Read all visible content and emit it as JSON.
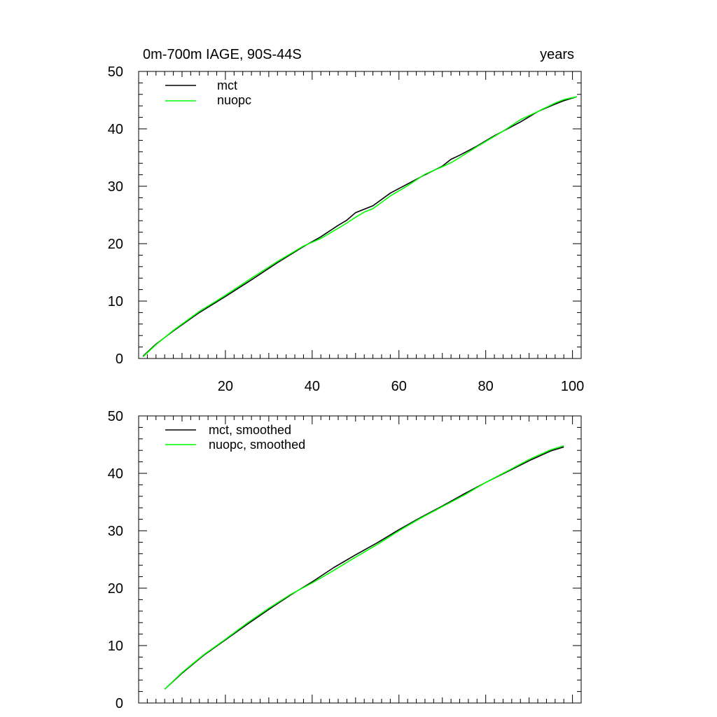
{
  "chart_data": [
    {
      "type": "line",
      "title": "0m-700m IAGE, 90S-44S",
      "units": "years",
      "xlim": [
        0,
        102
      ],
      "ylim": [
        0,
        50
      ],
      "xticks": [
        20,
        40,
        60,
        80,
        100
      ],
      "xtick_labels": [
        "20",
        "40",
        "60",
        "80",
        "100"
      ],
      "yticks": [
        0,
        10,
        20,
        30,
        40,
        50
      ],
      "ytick_labels": [
        "0",
        "10",
        "20",
        "30",
        "40",
        "50"
      ],
      "legend": "top-left",
      "series": [
        {
          "name": "mct",
          "color": "#000000",
          "x": [
            1,
            4,
            8,
            14,
            20,
            26,
            32,
            38,
            42,
            46,
            48,
            50,
            52,
            54,
            58,
            62,
            66,
            70,
            72,
            74,
            78,
            82,
            84,
            88,
            92,
            96,
            98,
            101
          ],
          "y": [
            0.4,
            2.5,
            4.8,
            8.0,
            10.8,
            13.7,
            16.7,
            19.5,
            21.2,
            23.2,
            24.1,
            25.4,
            26.0,
            26.6,
            28.8,
            30.4,
            32.0,
            33.5,
            34.7,
            35.4,
            37.0,
            38.8,
            39.6,
            41.2,
            43.0,
            44.3,
            44.9,
            45.6
          ]
        },
        {
          "name": "nuopc",
          "color": "#00ff00",
          "x": [
            1,
            4,
            8,
            14,
            20,
            26,
            32,
            38,
            42,
            46,
            48,
            50,
            52,
            54,
            58,
            62,
            66,
            70,
            72,
            74,
            78,
            82,
            84,
            88,
            92,
            96,
            98,
            101
          ],
          "y": [
            0.3,
            2.4,
            4.9,
            8.2,
            11.0,
            14.0,
            16.9,
            19.6,
            20.9,
            22.7,
            23.6,
            24.6,
            25.5,
            26.1,
            28.3,
            30.1,
            32.1,
            33.4,
            34.1,
            35.0,
            36.9,
            38.7,
            39.6,
            41.6,
            43.0,
            44.5,
            45.1,
            45.6
          ]
        }
      ]
    },
    {
      "type": "line",
      "xlim": [
        0,
        102
      ],
      "ylim": [
        0,
        50
      ],
      "xticks": [
        20,
        40,
        60,
        80,
        100
      ],
      "yticks": [
        0,
        10,
        20,
        30,
        40,
        50
      ],
      "ytick_labels": [
        "0",
        "10",
        "20",
        "30",
        "40",
        "50"
      ],
      "legend": "top-left",
      "series": [
        {
          "name": "mct, smoothed",
          "color": "#000000",
          "x": [
            6,
            10,
            15,
            20,
            25,
            30,
            35,
            40,
            45,
            50,
            55,
            60,
            65,
            70,
            75,
            80,
            85,
            90,
            95,
            98
          ],
          "y": [
            2.4,
            5.2,
            8.3,
            11.0,
            13.7,
            16.3,
            18.8,
            21.1,
            23.6,
            25.8,
            27.9,
            30.2,
            32.3,
            34.3,
            36.4,
            38.4,
            40.3,
            42.2,
            43.9,
            44.6
          ]
        },
        {
          "name": "nuopc, smoothed",
          "color": "#00ff00",
          "x": [
            6,
            10,
            15,
            20,
            25,
            30,
            35,
            40,
            45,
            50,
            55,
            60,
            65,
            70,
            75,
            80,
            85,
            90,
            95,
            98
          ],
          "y": [
            2.4,
            5.3,
            8.4,
            11.1,
            13.9,
            16.5,
            18.9,
            20.9,
            23.1,
            25.4,
            27.6,
            30.0,
            32.2,
            34.2,
            36.2,
            38.4,
            40.4,
            42.4,
            44.1,
            44.8
          ]
        }
      ]
    }
  ]
}
